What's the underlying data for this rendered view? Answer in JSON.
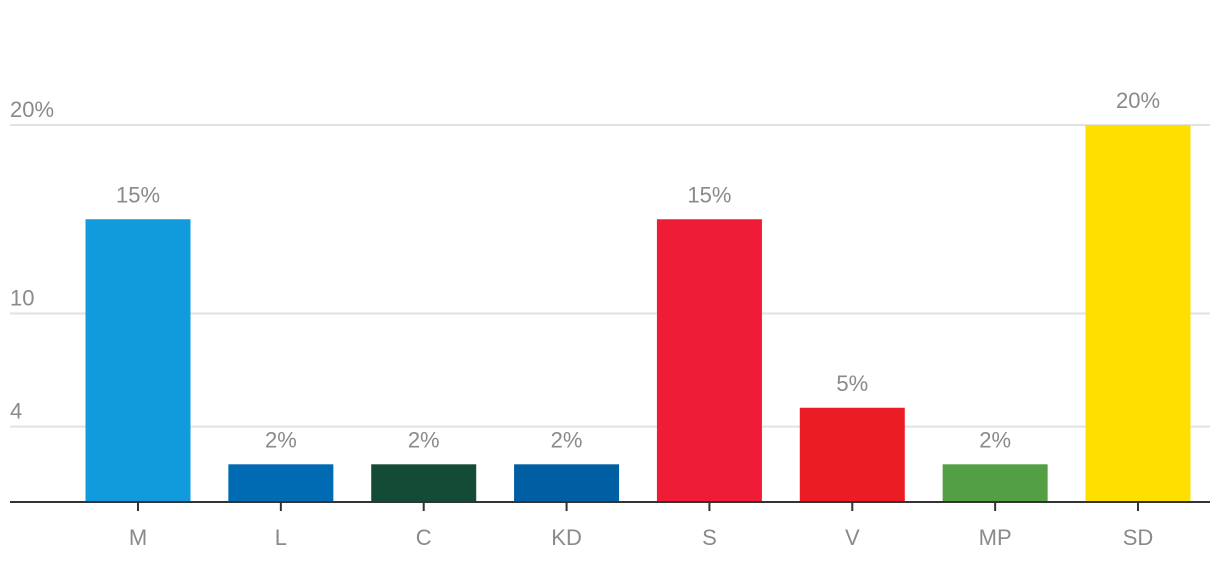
{
  "chart_data": {
    "type": "bar",
    "categories": [
      "M",
      "L",
      "C",
      "KD",
      "S",
      "V",
      "MP",
      "SD"
    ],
    "values": [
      15,
      2,
      2,
      2,
      15,
      5,
      2,
      20
    ],
    "value_labels": [
      "15%",
      "2%",
      "2%",
      "2%",
      "15%",
      "5%",
      "2%",
      "20%"
    ],
    "colors": [
      "#119bdc",
      "#006ab3",
      "#134b37",
      "#005ea3",
      "#ee1c36",
      "#ec1c24",
      "#53a044",
      "#ffdf00"
    ],
    "y_ticks": [
      {
        "value": 4,
        "label": "4"
      },
      {
        "value": 10,
        "label": "10"
      },
      {
        "value": 20,
        "label": "20%"
      }
    ],
    "ylim": [
      0,
      20
    ],
    "grid": true,
    "title": "",
    "xlabel": "",
    "ylabel": ""
  }
}
